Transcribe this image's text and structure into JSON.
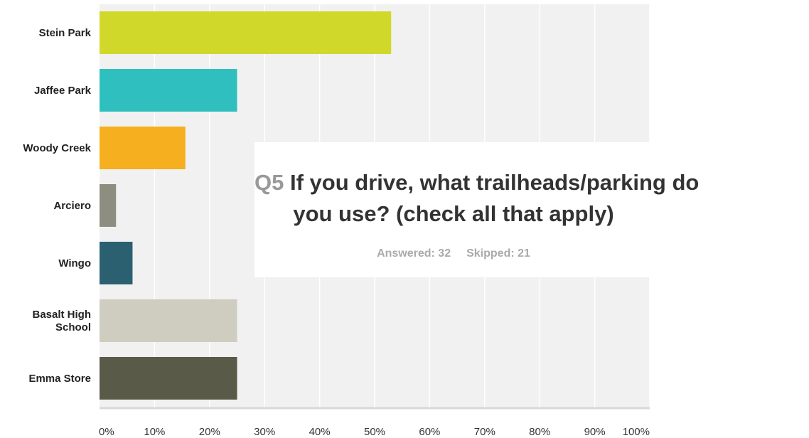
{
  "chart_data": {
    "type": "bar",
    "orientation": "horizontal",
    "title_prefix": "Q5",
    "title_line1": "If you drive, what trailheads/parking do",
    "title_line2": "you use? (check all that apply)",
    "answered_label": "Answered: 32",
    "skipped_label": "Skipped: 21",
    "categories": [
      [
        "Stein Park"
      ],
      [
        "Jaffee Park"
      ],
      [
        "Woody Creek"
      ],
      [
        "Arciero"
      ],
      [
        "Wingo"
      ],
      [
        "Basalt High",
        "School"
      ],
      [
        "Emma Store"
      ]
    ],
    "values": [
      53,
      25,
      15.6,
      3,
      6,
      25,
      25
    ],
    "colors": [
      "#d0d82a",
      "#30bfbf",
      "#f6af1e",
      "#8e8e80",
      "#2b6070",
      "#cecdc0",
      "#5a5a48"
    ],
    "x_ticks": [
      "0%",
      "10%",
      "20%",
      "30%",
      "40%",
      "50%",
      "60%",
      "70%",
      "80%",
      "90%",
      "100%"
    ],
    "xlim": [
      0,
      100
    ],
    "grid": true,
    "plot_background": "#f0f1f0"
  }
}
